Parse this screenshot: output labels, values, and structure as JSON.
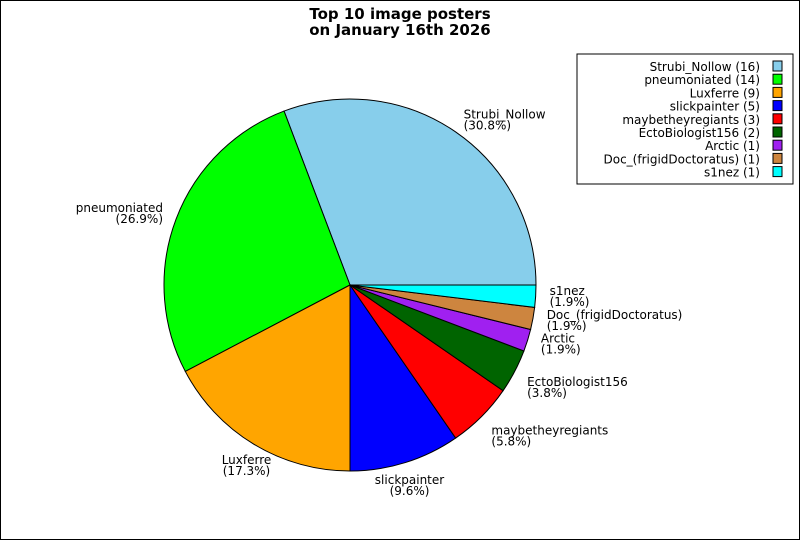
{
  "chart_data": {
    "type": "pie",
    "title": "Top 10 image posters",
    "subtitle": "on January 16th 2026",
    "legend_placement": "top-right",
    "slices": [
      {
        "label": "Strubi_Nollow",
        "value": 16,
        "percent": "30.8%",
        "color": "#87CEEB"
      },
      {
        "label": "pneumoniated",
        "value": 14,
        "percent": "26.9%",
        "color": "#00FF00"
      },
      {
        "label": "Luxferre",
        "value": 9,
        "percent": "17.3%",
        "color": "#FFA500"
      },
      {
        "label": "slickpainter",
        "value": 5,
        "percent": "9.6%",
        "color": "#0000FF"
      },
      {
        "label": "maybetheyregiants",
        "value": 3,
        "percent": "5.8%",
        "color": "#FF0000"
      },
      {
        "label": "EctoBiologist156",
        "value": 2,
        "percent": "3.8%",
        "color": "#006400"
      },
      {
        "label": "Arctic",
        "value": 1,
        "percent": "1.9%",
        "color": "#A020F0"
      },
      {
        "label": "Doc_(frigidDoctoratus)",
        "value": 1,
        "percent": "1.9%",
        "color": "#CD853F"
      },
      {
        "label": "s1nez",
        "value": 1,
        "percent": "1.9%",
        "color": "#00FFFF"
      }
    ]
  }
}
